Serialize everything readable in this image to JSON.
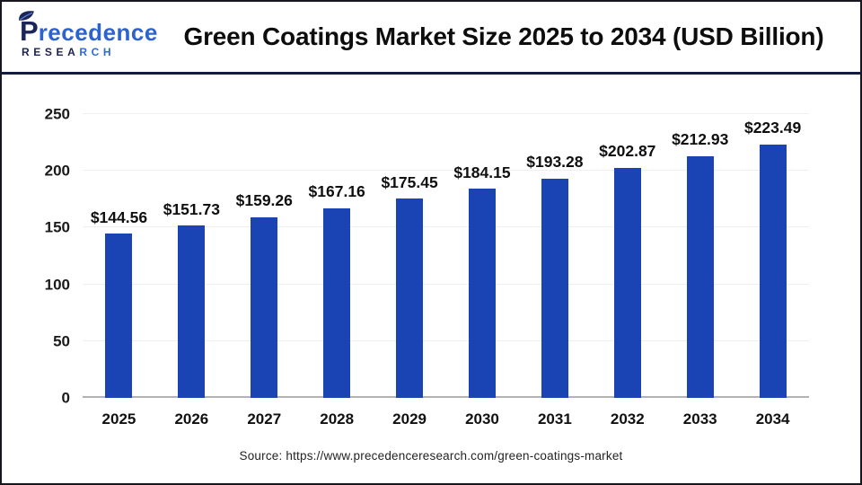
{
  "header": {
    "title": "Green Coatings Market Size 2025 to 2034 (USD Billion)",
    "logo": {
      "name_initial": "P",
      "name_rest": "recedence",
      "sub_left": "RESEA",
      "sub_right": "RCH"
    }
  },
  "chart_data": {
    "type": "bar",
    "title": "Green Coatings Market Size 2025 to 2034 (USD Billion)",
    "categories": [
      "2025",
      "2026",
      "2027",
      "2028",
      "2029",
      "2030",
      "2031",
      "2032",
      "2033",
      "2034"
    ],
    "values": [
      144.56,
      151.73,
      159.26,
      167.16,
      175.45,
      184.15,
      193.28,
      202.87,
      212.93,
      223.49
    ],
    "value_labels": [
      "$144.56",
      "$151.73",
      "$159.26",
      "$167.16",
      "$175.45",
      "$184.15",
      "$193.28",
      "$202.87",
      "$212.93",
      "$223.49"
    ],
    "unit": "USD Billion",
    "xlabel": "",
    "ylabel": "",
    "ylim": [
      0,
      250
    ],
    "yticks": [
      0,
      50,
      100,
      150,
      200,
      250
    ],
    "grid": true,
    "legend": "none",
    "bar_color": "#1A43B3"
  },
  "footer": {
    "source": "Source: https://www.precedenceresearch.com/green-coatings-market"
  },
  "colors": {
    "bar": "#1A43B3",
    "header_rule": "#141C3D",
    "logo_navy": "#1D2558",
    "logo_blue": "#2E63CF",
    "axis_baseline": "#B3B3B3",
    "gridline": "#EFEFEF",
    "frame_border": "#17171F"
  }
}
